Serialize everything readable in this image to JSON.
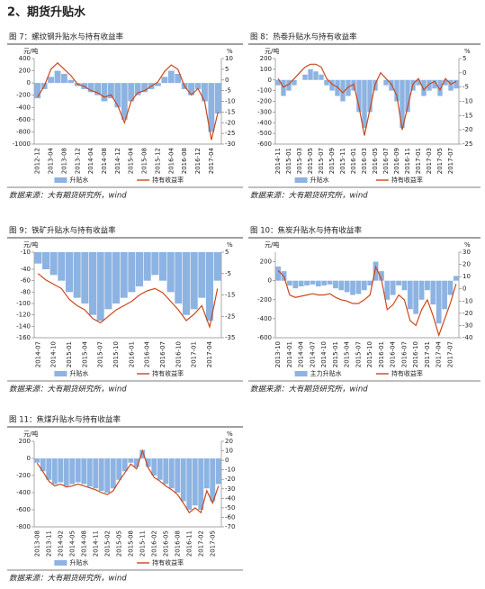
{
  "header": {
    "title": "2、期货升贴水"
  },
  "chart_data": [
    {
      "type": "combo",
      "title": "图 7：螺纹钢升贴水与持有收益率",
      "y_unit": "元/吨",
      "y2_unit": "%",
      "source": "数据来源：大有期货研究所，wind",
      "categories": [
        "2012-12",
        null,
        "2013-04",
        null,
        "2013-08",
        null,
        "2013-12",
        null,
        "2014-04",
        null,
        "2014-08",
        null,
        "2014-12",
        null,
        "2015-04",
        null,
        "2015-08",
        null,
        "2015-12",
        null,
        "2016-04",
        null,
        "2016-08",
        null,
        "2016-12",
        null,
        "2017-04",
        null
      ],
      "ylim": [
        -1000,
        400
      ],
      "yticks": [
        -1000,
        -800,
        -600,
        -400,
        -200,
        0,
        200,
        400
      ],
      "y2lim": [
        -30,
        10
      ],
      "y2ticks": [
        -30,
        -25,
        -20,
        -15,
        -10,
        -5,
        0,
        5,
        10
      ],
      "series": [
        {
          "name": "升贴水",
          "kind": "bar",
          "color": "#8db3e2",
          "values": [
            -250,
            -100,
            100,
            200,
            150,
            50,
            -50,
            -100,
            -150,
            -200,
            -300,
            -250,
            -400,
            -600,
            -300,
            -200,
            -150,
            -100,
            -50,
            100,
            200,
            150,
            -100,
            -200,
            -100,
            -300,
            -800,
            -500
          ]
        },
        {
          "name": "持有收益率",
          "kind": "line",
          "axis": "y2",
          "color": "#c9481c",
          "values": [
            -8,
            -3,
            5,
            8,
            5,
            2,
            -2,
            -3,
            -5,
            -6,
            -8,
            -7,
            -12,
            -20,
            -10,
            -6,
            -5,
            -3,
            -1,
            4,
            7,
            5,
            -3,
            -7,
            -4,
            -10,
            -28,
            -15
          ]
        }
      ]
    },
    {
      "type": "combo",
      "title": "图 8：热卷升贴水与持有收益率",
      "y_unit": "元/吨",
      "y2_unit": "%",
      "source": "数据来源：大有期货研究所，wind",
      "categories": [
        "2014-11",
        null,
        "2015-01",
        null,
        "2015-03",
        null,
        "2015-05",
        null,
        "2015-07",
        null,
        "2015-09",
        null,
        "2015-11",
        null,
        "2016-01",
        null,
        "2016-03",
        null,
        "2016-05",
        null,
        "2016-07",
        null,
        "2016-09",
        null,
        "2016-11",
        null,
        "2017-01",
        null,
        "2017-03",
        null,
        "2017-05",
        null,
        "2017-07",
        null
      ],
      "ylim": [
        -600,
        200
      ],
      "yticks": [
        -600,
        -500,
        -400,
        -300,
        -200,
        -100,
        0,
        100,
        200
      ],
      "y2lim": [
        -25,
        5
      ],
      "y2ticks": [
        -25,
        -20,
        -15,
        -10,
        -5,
        0,
        5
      ],
      "series": [
        {
          "name": "升贴水",
          "kind": "bar",
          "color": "#8db3e2",
          "values": [
            -50,
            -150,
            -100,
            -50,
            0,
            50,
            100,
            80,
            50,
            -50,
            -100,
            -150,
            -200,
            -150,
            -100,
            -300,
            -450,
            -300,
            -100,
            0,
            -50,
            -100,
            -200,
            -450,
            -300,
            -100,
            -50,
            -150,
            -100,
            -80,
            -150,
            -50,
            -100,
            -80
          ]
        },
        {
          "name": "持有收益率",
          "kind": "line",
          "axis": "y2",
          "color": "#c9481c",
          "values": [
            -2,
            -5,
            -4,
            -2,
            0,
            2,
            3,
            3,
            2,
            -2,
            -4,
            -5,
            -7,
            -5,
            -4,
            -12,
            -22,
            -13,
            -4,
            0,
            -2,
            -4,
            -8,
            -20,
            -12,
            -4,
            -2,
            -6,
            -4,
            -3,
            -6,
            -2,
            -4,
            -3
          ]
        }
      ]
    },
    {
      "type": "combo",
      "title": "图 9：铁矿升贴水与持有收益率",
      "y_unit": "元/吨",
      "y2_unit": "%",
      "source": "数据来源：大有期货研究所，wind",
      "categories": [
        "2014-07",
        null,
        "2014-10",
        null,
        "2015-01",
        null,
        "2015-04",
        null,
        "2015-07",
        null,
        "2015-10",
        null,
        "2016-01",
        null,
        "2016-04",
        null,
        "2016-07",
        null,
        "2016-10",
        null,
        "2017-01",
        null,
        "2017-04",
        null
      ],
      "ylim": [
        -160,
        -10
      ],
      "yticks": [
        -160,
        -140,
        -120,
        -100,
        -80,
        -60,
        -40,
        -10
      ],
      "y2lim": [
        -35,
        5
      ],
      "y2ticks": [
        -35,
        -25,
        -15,
        -5,
        5
      ],
      "series": [
        {
          "name": "升贴水",
          "kind": "bar",
          "color": "#8db3e2",
          "values": [
            -30,
            -40,
            -50,
            -60,
            -80,
            -90,
            -100,
            -120,
            -130,
            -110,
            -100,
            -90,
            -80,
            -70,
            -60,
            -50,
            -60,
            -80,
            -100,
            -120,
            -110,
            -90,
            -130,
            -60
          ]
        },
        {
          "name": "持有收益率",
          "kind": "line",
          "axis": "y2",
          "color": "#c9481c",
          "values": [
            -5,
            -8,
            -10,
            -12,
            -17,
            -20,
            -22,
            -26,
            -28,
            -25,
            -22,
            -20,
            -18,
            -15,
            -13,
            -12,
            -14,
            -18,
            -22,
            -27,
            -24,
            -20,
            -30,
            -12
          ]
        }
      ]
    },
    {
      "type": "combo",
      "title": "图 10：焦炭升贴水与持有收益率",
      "y_unit": "元/吨",
      "y2_unit": "%",
      "source": "数据来源：大有期货研究所，wind",
      "categories": [
        "2013-10",
        null,
        "2014-01",
        null,
        "2014-04",
        null,
        "2014-07",
        null,
        "2014-10",
        null,
        "2015-01",
        null,
        "2015-04",
        null,
        "2015-07",
        null,
        "2015-10",
        null,
        "2016-01",
        null,
        "2016-04",
        null,
        "2016-07",
        null,
        "2016-10",
        null,
        "2017-01",
        null,
        "2017-04",
        null,
        "2017-07",
        null
      ],
      "ylim": [
        -600,
        300
      ],
      "yticks": [
        -600,
        -400,
        -200,
        0,
        200
      ],
      "y2lim": [
        -40,
        30
      ],
      "y2ticks": [
        -40,
        -30,
        -20,
        -10,
        0,
        10,
        20,
        30
      ],
      "series": [
        {
          "name": "主力升贴水",
          "kind": "bar",
          "color": "#8db3e2",
          "values": [
            150,
            100,
            -50,
            -80,
            -60,
            -50,
            -40,
            -60,
            -50,
            -40,
            -80,
            -100,
            -120,
            -150,
            -140,
            -100,
            -50,
            200,
            100,
            -200,
            -150,
            -50,
            -100,
            -300,
            -350,
            -200,
            -100,
            -250,
            -450,
            -300,
            -150,
            50
          ]
        },
        {
          "name": "持有收益率",
          "kind": "line",
          "axis": "y2",
          "color": "#c9481c",
          "values": [
            15,
            10,
            -5,
            -7,
            -6,
            -5,
            -4,
            -5,
            -5,
            -4,
            -7,
            -9,
            -10,
            -12,
            -12,
            -9,
            -5,
            18,
            8,
            -17,
            -13,
            -5,
            -9,
            -26,
            -30,
            -17,
            -9,
            -22,
            -38,
            -25,
            -12,
            4
          ]
        }
      ]
    },
    {
      "type": "combo",
      "title": "图 11：焦煤升贴水与持有收益率",
      "y_unit": "元/吨",
      "y2_unit": "%",
      "source": "数据来源：大有期货研究所，wind",
      "categories": [
        "2013-08",
        null,
        "2013-11",
        null,
        "2014-02",
        null,
        "2014-05",
        null,
        "2014-08",
        null,
        "2014-11",
        null,
        "2015-02",
        null,
        "2015-05",
        null,
        "2015-08",
        null,
        "2015-11",
        null,
        "2016-02",
        null,
        "2016-05",
        null,
        "2016-08",
        null,
        "2016-11",
        null,
        "2017-02",
        null,
        "2017-05",
        null
      ],
      "ylim": [
        -800,
        200
      ],
      "yticks": [
        -800,
        -600,
        -400,
        -200,
        0,
        200
      ],
      "y2lim": [
        -70,
        20
      ],
      "y2ticks": [
        -70,
        -60,
        -50,
        -40,
        -30,
        -20,
        -10,
        0,
        10,
        20
      ],
      "series": [
        {
          "name": "升贴水",
          "kind": "bar",
          "color": "#8db3e2",
          "values": [
            -50,
            -150,
            -250,
            -300,
            -280,
            -320,
            -300,
            -280,
            -300,
            -330,
            -350,
            -380,
            -400,
            -350,
            -250,
            -150,
            -50,
            -100,
            100,
            -100,
            -200,
            -250,
            -300,
            -350,
            -400,
            -500,
            -600,
            -550,
            -600,
            -350,
            -500,
            -300
          ]
        },
        {
          "name": "持有收益率",
          "kind": "line",
          "axis": "y2",
          "color": "#c9481c",
          "values": [
            -3,
            -12,
            -22,
            -27,
            -25,
            -28,
            -27,
            -25,
            -27,
            -29,
            -31,
            -34,
            -36,
            -32,
            -22,
            -13,
            -4,
            -9,
            10,
            -8,
            -18,
            -22,
            -27,
            -31,
            -36,
            -45,
            -55,
            -50,
            -55,
            -32,
            -45,
            -27
          ]
        }
      ]
    }
  ]
}
